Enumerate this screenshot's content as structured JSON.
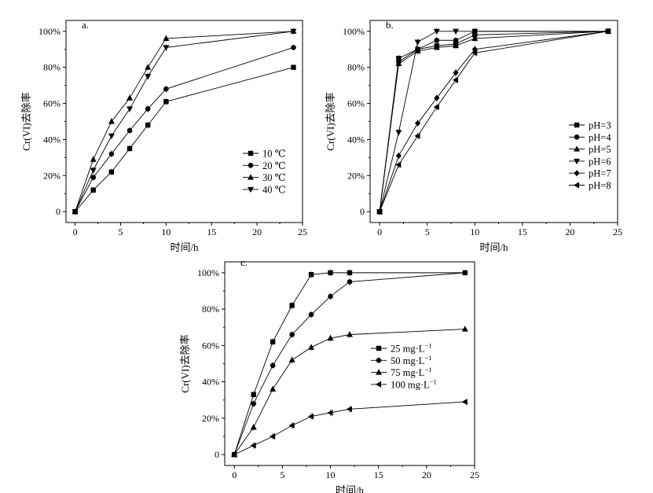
{
  "chart_data": [
    {
      "type": "line",
      "panel_label": "a.",
      "xlabel": "时间/h",
      "ylabel": "Cr(VI)去除率",
      "xlim": [
        -1,
        25
      ],
      "ylim": [
        -6,
        106
      ],
      "xticks": [
        "0",
        "5",
        "10",
        "15",
        "20",
        "25"
      ],
      "yticks": [
        "0",
        "20%",
        "40%",
        "60%",
        "80%",
        "100%"
      ],
      "legend_position": "right-middle",
      "x": [
        0,
        2,
        4,
        6,
        8,
        10,
        24
      ],
      "series": [
        {
          "name": "10 ℃",
          "marker": "square",
          "values": [
            0,
            12,
            22,
            35,
            48,
            61,
            80
          ]
        },
        {
          "name": "20 ℃",
          "marker": "circle",
          "values": [
            0,
            19,
            32,
            45,
            57,
            68,
            91
          ]
        },
        {
          "name": "30 ℃",
          "marker": "triangle-up",
          "values": [
            0,
            29,
            50,
            63,
            80,
            96,
            100
          ]
        },
        {
          "name": "40 ℃",
          "marker": "triangle-down",
          "values": [
            0,
            23,
            42,
            57,
            75,
            91,
            100
          ]
        }
      ]
    },
    {
      "type": "line",
      "panel_label": "b.",
      "xlabel": "时间/h",
      "ylabel": "Cr(VI)去除率",
      "xlim": [
        -1,
        25
      ],
      "ylim": [
        -6,
        106
      ],
      "xticks": [
        "0",
        "5",
        "10",
        "15",
        "20",
        "25"
      ],
      "yticks": [
        "0",
        "20%",
        "40%",
        "60%",
        "80%",
        "100%"
      ],
      "legend_position": "right-middle",
      "x": [
        0,
        2,
        4,
        6,
        8,
        10,
        24
      ],
      "series": [
        {
          "name": "pH=3",
          "marker": "square",
          "values": [
            0,
            85,
            90,
            92,
            93,
            98,
            100
          ]
        },
        {
          "name": "pH=4",
          "marker": "circle",
          "values": [
            0,
            83,
            90,
            95,
            95,
            100,
            100
          ]
        },
        {
          "name": "pH=5",
          "marker": "triangle-up",
          "values": [
            0,
            82,
            89,
            91,
            92,
            96,
            100
          ]
        },
        {
          "name": "pH=6",
          "marker": "triangle-down",
          "values": [
            0,
            44,
            94,
            100,
            100,
            100,
            100
          ]
        },
        {
          "name": "pH=7",
          "marker": "diamond",
          "values": [
            0,
            31,
            49,
            63,
            77,
            90,
            100
          ]
        },
        {
          "name": "pH=8",
          "marker": "triangle-left",
          "values": [
            0,
            26,
            42,
            58,
            73,
            88,
            100
          ]
        }
      ]
    },
    {
      "type": "line",
      "panel_label": "c.",
      "xlabel": "时间/h",
      "ylabel": "Cr(VI)去除率",
      "xlim": [
        -1,
        25
      ],
      "ylim": [
        -6,
        106
      ],
      "xticks": [
        "0",
        "5",
        "10",
        "15",
        "20",
        "25"
      ],
      "yticks": [
        "0",
        "20%",
        "40%",
        "60%",
        "80%",
        "100%"
      ],
      "legend_position": "right-middle",
      "x": [
        0,
        2,
        4,
        6,
        8,
        10,
        12,
        24
      ],
      "series": [
        {
          "name": "25 mg·L",
          "unit_sup": "−1",
          "marker": "square",
          "values": [
            0,
            33,
            62,
            82,
            99,
            100,
            100,
            100
          ]
        },
        {
          "name": "50 mg·L",
          "unit_sup": "−1",
          "marker": "circle",
          "values": [
            0,
            28,
            49,
            66,
            77,
            87,
            95,
            100
          ]
        },
        {
          "name": "75 mg·L",
          "unit_sup": "−1",
          "marker": "triangle-up",
          "values": [
            0,
            15,
            36,
            52,
            59,
            64,
            66,
            69
          ]
        },
        {
          "name": "100 mg·L",
          "unit_sup": "−1",
          "marker": "triangle-left",
          "values": [
            0,
            5,
            10,
            16,
            21,
            23,
            25,
            29
          ]
        }
      ]
    }
  ]
}
